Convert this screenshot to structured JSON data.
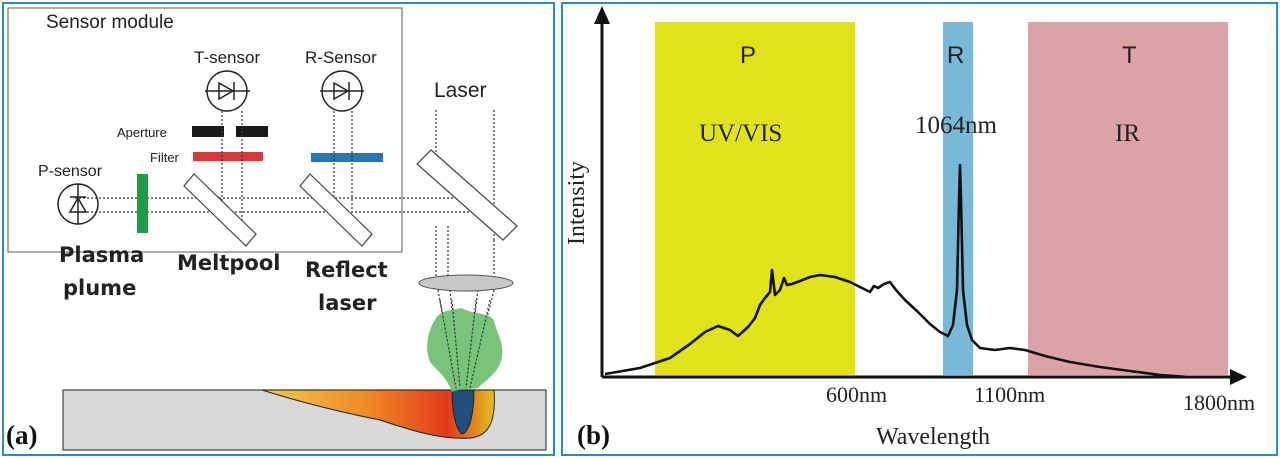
{
  "panel_a": {
    "label": "(a)",
    "sensor_module_title": "Sensor module",
    "t_sensor": "T-sensor",
    "r_sensor": "R-Sensor",
    "p_sensor": "P-sensor",
    "laser": "Laser",
    "aperture": "Aperture",
    "filter": "Filter",
    "plasma_line1": "Plasma",
    "plasma_line2": "plume",
    "meltpool": "Meltpool",
    "reflect_line1": "Reflect",
    "reflect_line2": "laser",
    "colors": {
      "border": "#2e8bc0",
      "aperture": "#1a1a1a",
      "filter_red": "#d9363e",
      "filter_blue": "#2677b8",
      "p_filter": "#1f9a4a",
      "plume": "#6cbf6c",
      "substrate": "#d8d8d8",
      "meltpool_dark": "#1f4e79"
    }
  },
  "panel_b": {
    "label": "(b)",
    "colors": {
      "p_band": "#e2e21a",
      "r_band": "#7ab8d8",
      "t_band": "#dca3a6",
      "curve": "#111111"
    }
  },
  "chart_data": {
    "type": "line",
    "xlabel": "Wavelength",
    "ylabel": "Intensity",
    "x_ticks": [
      "600nm",
      "1100nm",
      "1800nm"
    ],
    "bands": [
      {
        "letter": "P",
        "label": "UV/VIS",
        "range": "UV to 600nm"
      },
      {
        "letter": "R",
        "label": "1064nm",
        "center": "1064nm"
      },
      {
        "letter": "T",
        "label": "IR",
        "range": "1100nm to 1800nm"
      }
    ],
    "peak_label": "1064nm",
    "grid": false,
    "legend": "none"
  }
}
